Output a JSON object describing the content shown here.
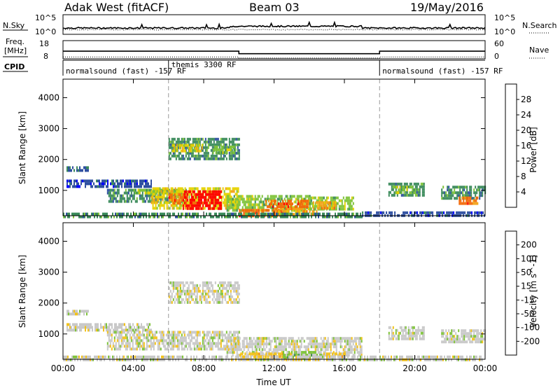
{
  "header": {
    "station": "Adak West (fitACF)",
    "beam": "Beam 03",
    "date": "19/May/2016"
  },
  "nsky_panel": {
    "left_label": "N.Sky",
    "right_label": "N.Search",
    "left_ticks": [
      "10^5",
      "10^0"
    ],
    "right_ticks": [
      "10^5",
      "10^0"
    ]
  },
  "freq_panel": {
    "left_label_line1": "Freq.",
    "left_label_line2": "[MHz]",
    "right_label": "Nave",
    "left_ticks": [
      "18",
      "8"
    ],
    "right_ticks": [
      "60",
      "0"
    ]
  },
  "cpid": {
    "label": "CPID",
    "segments": [
      {
        "start_hour": 0,
        "end_hour": 6,
        "text": "normalsound (fast) -157 RF"
      },
      {
        "start_hour": 6,
        "end_hour": 18,
        "text": "themis 3300 RF"
      },
      {
        "start_hour": 18,
        "end_hour": 24,
        "text": "normalsound (fast) -157 RF"
      }
    ]
  },
  "x_axis": {
    "label": "Time UT",
    "ticks": [
      "00:00",
      "04:00",
      "08:00",
      "12:00",
      "16:00",
      "20:00",
      "00:00"
    ]
  },
  "power_panel": {
    "ylabel": "Slant Range [km]",
    "yticks": [
      "1000",
      "2000",
      "3000",
      "4000"
    ],
    "colorbar_label": "Power [dB]",
    "colorbar_ticks": [
      "4",
      "8",
      "12",
      "16",
      "20",
      "24",
      "28"
    ],
    "colors": [
      "#0000ff",
      "#2e4fa0",
      "#3a8a5a",
      "#7fc33a",
      "#e7d200",
      "#f2a318",
      "#f26a0a",
      "#ff0000"
    ]
  },
  "velocity_panel": {
    "ylabel": "Slant Range [km]",
    "yticks": [
      "1000",
      "2000",
      "3000",
      "4000"
    ],
    "colorbar_label": "Velocity [m s^-1]",
    "colorbar_ticks": [
      "200",
      "100",
      "50",
      "15",
      "-15",
      "-50",
      "-100",
      "-200"
    ],
    "colors": [
      "#1a1ab4",
      "#2e4fa0",
      "#3a8a5a",
      "#7fc33a",
      "#c8c8c8",
      "#f2c21a",
      "#f28a0a",
      "#f24a0a",
      "#ff0000"
    ]
  },
  "chart_data": {
    "type": "heatmap",
    "x_unit": "hours UT",
    "xlim": [
      0,
      24
    ],
    "ylim_km": [
      180,
      4600
    ],
    "vertical_markers_hours": [
      6,
      18
    ],
    "frequency_mhz": [
      {
        "start_hour": 0,
        "end_hour": 10,
        "value": 12.2
      },
      {
        "start_hour": 10,
        "end_hour": 18,
        "value": 10.8
      },
      {
        "start_hour": 18,
        "end_hour": 24,
        "value": 12.2
      }
    ],
    "nave": [
      {
        "start_hour": 0,
        "end_hour": 10,
        "value": 6
      },
      {
        "start_hour": 10,
        "end_hour": 18,
        "value": 3
      },
      {
        "start_hour": 18,
        "end_hour": 24,
        "value": 6
      }
    ],
    "power_regions": [
      {
        "t0": 0.2,
        "t1": 1.4,
        "r0": 1680,
        "r1": 1780,
        "level": 1
      },
      {
        "t0": 0.2,
        "t1": 5.0,
        "r0": 1150,
        "r1": 1350,
        "level": 1
      },
      {
        "t0": 2.5,
        "t1": 7.0,
        "r0": 650,
        "r1": 1050,
        "level": 2
      },
      {
        "t0": 4.0,
        "t1": 6.5,
        "r0": 900,
        "r1": 1050,
        "level": 3
      },
      {
        "t0": 6.0,
        "t1": 10.0,
        "r0": 2000,
        "r1": 2700,
        "level": 2
      },
      {
        "t0": 6.2,
        "t1": 8.0,
        "r0": 2250,
        "r1": 2500,
        "level": 4
      },
      {
        "t0": 8.5,
        "t1": 9.8,
        "r0": 2200,
        "r1": 2450,
        "level": 3
      },
      {
        "t0": 5.0,
        "t1": 10.0,
        "r0": 450,
        "r1": 1100,
        "level": 4
      },
      {
        "t0": 6.8,
        "t1": 9.0,
        "r0": 450,
        "r1": 1000,
        "level": 7
      },
      {
        "t0": 6.0,
        "t1": 7.0,
        "r0": 550,
        "r1": 900,
        "level": 6
      },
      {
        "t0": 9.3,
        "t1": 14.0,
        "r0": 350,
        "r1": 850,
        "level": 3
      },
      {
        "t0": 10.0,
        "t1": 12.5,
        "r0": 200,
        "r1": 400,
        "level": 6
      },
      {
        "t0": 12.0,
        "t1": 14.5,
        "r0": 250,
        "r1": 450,
        "level": 5
      },
      {
        "t0": 11.5,
        "t1": 14.0,
        "r0": 500,
        "r1": 700,
        "level": 6
      },
      {
        "t0": 14.0,
        "t1": 16.5,
        "r0": 350,
        "r1": 800,
        "level": 3
      },
      {
        "t0": 14.2,
        "t1": 15.5,
        "r0": 400,
        "r1": 650,
        "level": 5
      },
      {
        "t0": 0.0,
        "t1": 17.0,
        "r0": 180,
        "r1": 280,
        "level": 2
      },
      {
        "t0": 18.5,
        "t1": 20.5,
        "r0": 850,
        "r1": 1250,
        "level": 2
      },
      {
        "t0": 18.8,
        "t1": 20.0,
        "r0": 950,
        "r1": 1150,
        "level": 3
      },
      {
        "t0": 21.5,
        "t1": 24.0,
        "r0": 700,
        "r1": 1150,
        "level": 2
      },
      {
        "t0": 22.5,
        "t1": 23.6,
        "r0": 550,
        "r1": 800,
        "level": 6
      },
      {
        "t0": 17.0,
        "t1": 24.0,
        "r0": 180,
        "r1": 320,
        "level": 1
      }
    ],
    "velocity_regions": [
      {
        "t0": 0.2,
        "t1": 1.4,
        "r0": 1680,
        "r1": 1780,
        "level": 4
      },
      {
        "t0": 0.2,
        "t1": 5.0,
        "r0": 1150,
        "r1": 1350,
        "level": 4
      },
      {
        "t0": 2.5,
        "t1": 10.0,
        "r0": 500,
        "r1": 1100,
        "level": 4
      },
      {
        "t0": 6.0,
        "t1": 10.0,
        "r0": 2000,
        "r1": 2700,
        "level": 4
      },
      {
        "t0": 9.3,
        "t1": 17.0,
        "r0": 350,
        "r1": 900,
        "level": 4
      },
      {
        "t0": 10.0,
        "t1": 13.0,
        "r0": 200,
        "r1": 400,
        "level": 5
      },
      {
        "t0": 12.5,
        "t1": 14.8,
        "r0": 250,
        "r1": 450,
        "level": 3
      },
      {
        "t0": 14.8,
        "t1": 16.0,
        "r0": 250,
        "r1": 400,
        "level": 5
      },
      {
        "t0": 18.5,
        "t1": 20.5,
        "r0": 850,
        "r1": 1250,
        "level": 4
      },
      {
        "t0": 21.5,
        "t1": 24.0,
        "r0": 700,
        "r1": 1150,
        "level": 4
      },
      {
        "t0": 0.0,
        "t1": 24.0,
        "r0": 180,
        "r1": 300,
        "level": 4
      }
    ]
  }
}
